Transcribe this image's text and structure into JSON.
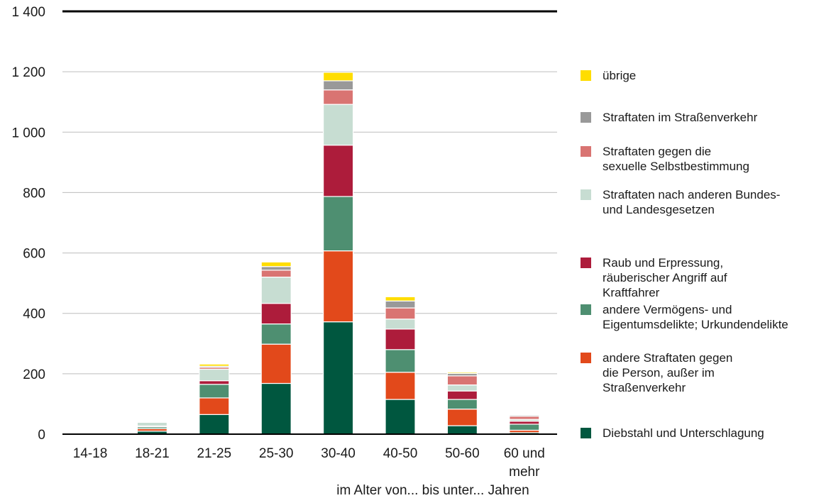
{
  "chart_data": {
    "type": "bar",
    "stacked": true,
    "categories": [
      "14-18",
      "18-21",
      "21-25",
      "25-30",
      "30-40",
      "40-50",
      "50-60",
      "60 und\nmehr"
    ],
    "xlabel": "im Alter von... bis unter... Jahren",
    "ylabel": "",
    "ylim": [
      0,
      1400
    ],
    "yticks": [
      0,
      200,
      400,
      600,
      800,
      1000,
      1200,
      1400
    ],
    "ytick_labels": [
      "0",
      "200",
      "400",
      "600",
      "800",
      "1 000",
      "1 200",
      "1 400"
    ],
    "grid": true,
    "legend_position": "right",
    "series": [
      {
        "name": "Diebstahl und Unterschlagung",
        "color": "#00573F",
        "values": [
          2,
          10,
          65,
          168,
          372,
          115,
          28,
          5
        ]
      },
      {
        "name": "andere Straftaten gegen\ndie Person, außer im\nStraßenverkehr",
        "color": "#E2491B",
        "values": [
          1,
          8,
          55,
          130,
          235,
          90,
          55,
          8
        ]
      },
      {
        "name": "andere Vermögens- und\nEigentumsdelikte; Urkundendelikte",
        "color": "#4E8F71",
        "values": [
          0,
          6,
          45,
          67,
          180,
          75,
          32,
          20
        ]
      },
      {
        "name": "Raub und Erpressung,\nräuberischer Angriff auf\nKraftfahrer",
        "color": "#AD1C3B",
        "values": [
          0,
          3,
          12,
          68,
          170,
          68,
          28,
          10
        ]
      },
      {
        "name": "Straftaten nach anderen Bundes-\nund Landesgesetzen",
        "color": "#C7DDD2",
        "values": [
          0,
          12,
          38,
          87,
          135,
          33,
          20,
          6
        ]
      },
      {
        "name": "Straftaten gegen die\nsexuelle Selbstbestimmung",
        "color": "#D97472",
        "values": [
          0,
          2,
          6,
          23,
          48,
          37,
          30,
          10
        ]
      },
      {
        "name": "Straftaten im Straßenverkehr",
        "color": "#999999",
        "values": [
          0,
          2,
          4,
          12,
          30,
          23,
          8,
          4
        ]
      },
      {
        "name": "übrige",
        "color": "#FFDD00",
        "values": [
          0,
          1,
          7,
          15,
          28,
          14,
          4,
          2
        ]
      }
    ]
  }
}
